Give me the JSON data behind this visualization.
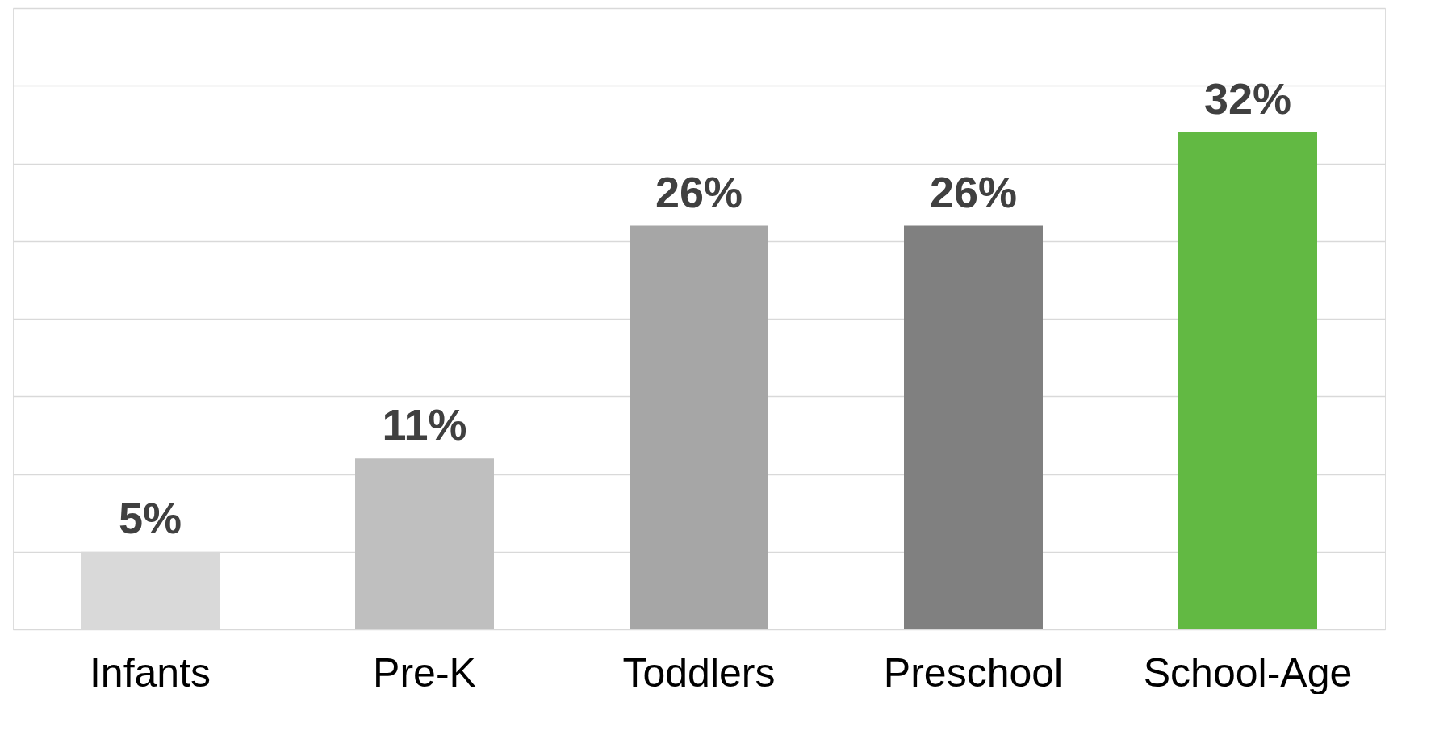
{
  "chart_data": {
    "type": "bar",
    "categories": [
      "Infants",
      "Pre-K",
      "Toddlers",
      "Preschool",
      "School-Age"
    ],
    "values": [
      5,
      11,
      26,
      26,
      32
    ],
    "colors": [
      "#d9d9d9",
      "#bfbfbf",
      "#a6a6a6",
      "#808080",
      "#62b943"
    ],
    "value_labels": [
      "5%",
      "11%",
      "26%",
      "26%",
      "32%"
    ],
    "ylim": [
      0,
      40
    ],
    "yticks": [
      {
        "value": 0,
        "label": null
      },
      {
        "value": 5,
        "label": null
      },
      {
        "value": 10,
        "label": null
      },
      {
        "value": 15,
        "label": null
      },
      {
        "value": 20,
        "label": null
      },
      {
        "value": 25,
        "label": null
      },
      {
        "value": 30,
        "label": null
      },
      {
        "value": 35,
        "label": null
      },
      {
        "value": 40,
        "label": null
      }
    ],
    "grid": "y",
    "tick_labels": "x"
  }
}
